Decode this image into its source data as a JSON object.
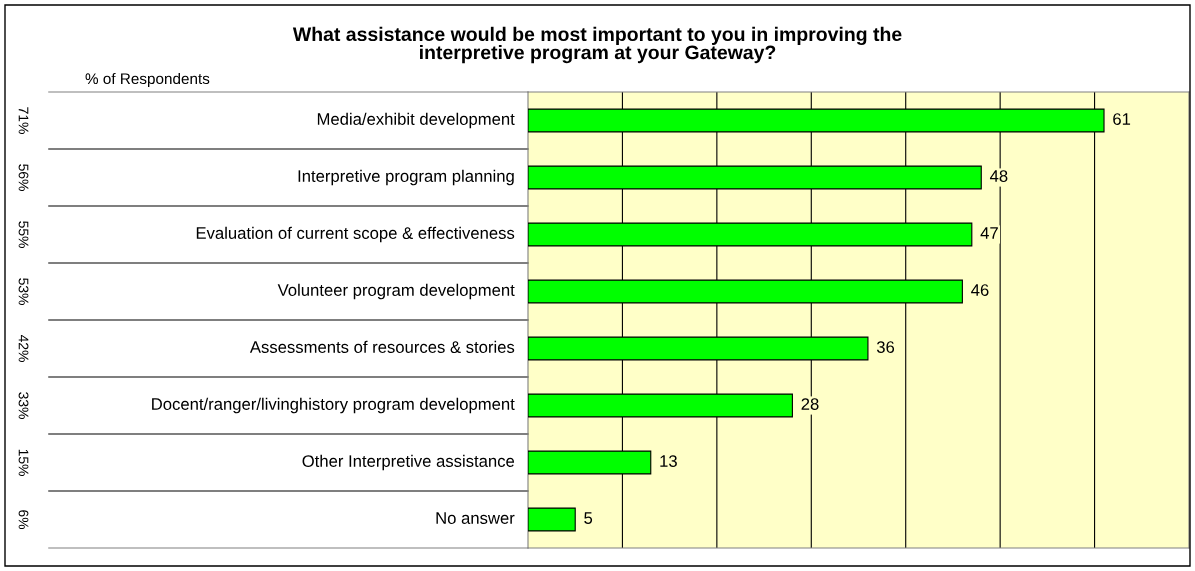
{
  "chart_data": {
    "type": "bar",
    "orientation": "horizontal",
    "title": "What assistance would be most important to you in improving the\ninterpretive program at your Gateway?",
    "categories": [
      "Media/exhibit development",
      "Interpretive program planning",
      "Evaluation of current scope & effectiveness",
      "Volunteer program development",
      "Assessments of resources & stories",
      "Docent/ranger/livinghistory program development",
      "Other Interpretive assistance",
      "No answer"
    ],
    "values": [
      61,
      48,
      47,
      46,
      36,
      28,
      13,
      5
    ],
    "color": "#00ff00",
    "data_labels": true,
    "xlim": [
      0,
      70
    ],
    "xticks": [
      {
        "value": 10,
        "label": null
      },
      {
        "value": 20,
        "label": null
      },
      {
        "value": 30,
        "label": null
      },
      {
        "value": 40,
        "label": null
      },
      {
        "value": 50,
        "label": null
      },
      {
        "value": 60,
        "label": null
      }
    ],
    "grid": "x",
    "legend": false,
    "annotations": [
      "% of Respondents",
      "71%",
      "56%",
      "55%",
      "53%",
      "42%",
      "33%",
      "15%",
      "6%"
    ]
  }
}
